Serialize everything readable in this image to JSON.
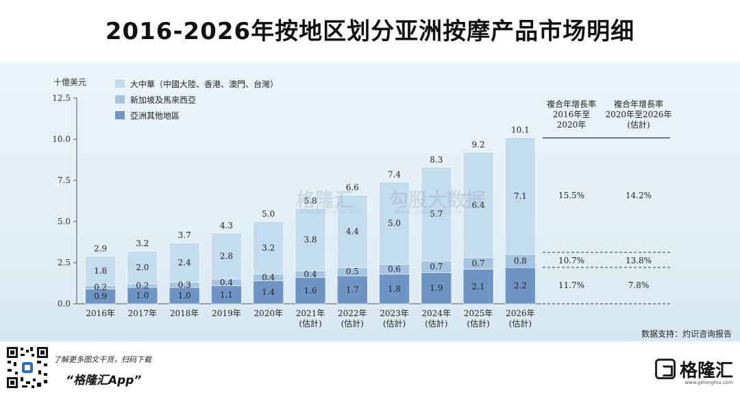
{
  "title": "2016-2026年按地区划分亚洲按摩产品市场明细",
  "unit_label": "十億美元",
  "colors": {
    "greater_china": "#c3dcee",
    "singapore_malaysia": "#a4c4df",
    "other_asia": "#6e95c4"
  },
  "chart_data": {
    "type": "bar",
    "stacked": true,
    "ylim": [
      0,
      12.5
    ],
    "yticks": [
      "0.0",
      "2.5",
      "5.0",
      "7.5",
      "10.0",
      "12.5"
    ],
    "categories": [
      [
        "2016年"
      ],
      [
        "2017年"
      ],
      [
        "2018年"
      ],
      [
        "2019年"
      ],
      [
        "2020年"
      ],
      [
        "2021年",
        "(估計)"
      ],
      [
        "2022年",
        "(估計)"
      ],
      [
        "2023年",
        "(估計)"
      ],
      [
        "2024年",
        "(估計)"
      ],
      [
        "2025年",
        "(估計)"
      ],
      [
        "2026年",
        "(估計)"
      ]
    ],
    "series": [
      {
        "name": "亞洲其他地區",
        "values": [
          0.9,
          1.0,
          1.0,
          1.1,
          1.4,
          1.6,
          1.7,
          1.8,
          1.9,
          2.1,
          2.2
        ]
      },
      {
        "name": "新加坡及馬來西亞",
        "values": [
          0.2,
          0.2,
          0.3,
          0.4,
          0.4,
          0.4,
          0.5,
          0.6,
          0.7,
          0.7,
          0.8
        ]
      },
      {
        "name": "大中華（中國大陸、香港、澳門、台灣）",
        "values": [
          1.8,
          2.0,
          2.4,
          2.8,
          3.2,
          3.8,
          4.4,
          5.0,
          5.7,
          6.4,
          7.1
        ]
      }
    ],
    "totals": [
      2.9,
      3.2,
      3.7,
      4.3,
      5.0,
      5.8,
      6.6,
      7.4,
      8.3,
      9.2,
      10.1
    ],
    "value_labels": [
      [
        "0.9",
        "1.0",
        "1.0",
        "1.1",
        "1.4",
        "1.6",
        "1.7",
        "1.8",
        "1.9",
        "2.1",
        "2.2"
      ],
      [
        "0.2",
        "0.2",
        "0.3",
        "0.4",
        "0.4",
        "0.4",
        "0.5",
        "0.6",
        "0.7",
        "0.7",
        "0.8"
      ],
      [
        "1.8",
        "2.0",
        "2.4",
        "2.8",
        "3.2",
        "3.8",
        "4.4",
        "5.0",
        "5.7",
        "6.4",
        "7.1"
      ]
    ],
    "total_labels": [
      "2.9",
      "3.2",
      "3.7",
      "4.3",
      "5.0",
      "5.8",
      "6.6",
      "7.4",
      "8.3",
      "9.2",
      "10.1"
    ],
    "legend": [
      {
        "label": "大中華（中國大陸、香港、澳門、台灣）",
        "series_index": 2
      },
      {
        "label": "新加坡及馬來西亞",
        "series_index": 1
      },
      {
        "label": "亞洲其他地區",
        "series_index": 0
      }
    ],
    "legend_position": "top-left"
  },
  "cagr_table": {
    "headers": [
      [
        "複合年增長率",
        "2016年至",
        "2020年"
      ],
      [
        "複合年增長率",
        "2020年至2026年",
        "(估計)"
      ]
    ],
    "rows": [
      {
        "series": "大中華",
        "values": [
          "15.5%",
          "14.2%"
        ]
      },
      {
        "series": "新加坡及馬來西亞",
        "values": [
          "10.7%",
          "13.8%"
        ]
      },
      {
        "series": "亞洲其他地區",
        "values": [
          "11.7%",
          "7.8%"
        ]
      }
    ]
  },
  "watermark": {
    "brand": "格隆汇",
    "brand_url": "www.gelonghui.com",
    "site": "勾股大数据",
    "site_url": "www.gogudata.com"
  },
  "source": "数据支持：灼识咨询报告",
  "footer": {
    "promo": "了解更多图文干货，扫码下载",
    "app_name": "“格隆汇App”",
    "logo_text": "格隆汇",
    "logo_sub": "www.gelonghui.com"
  }
}
